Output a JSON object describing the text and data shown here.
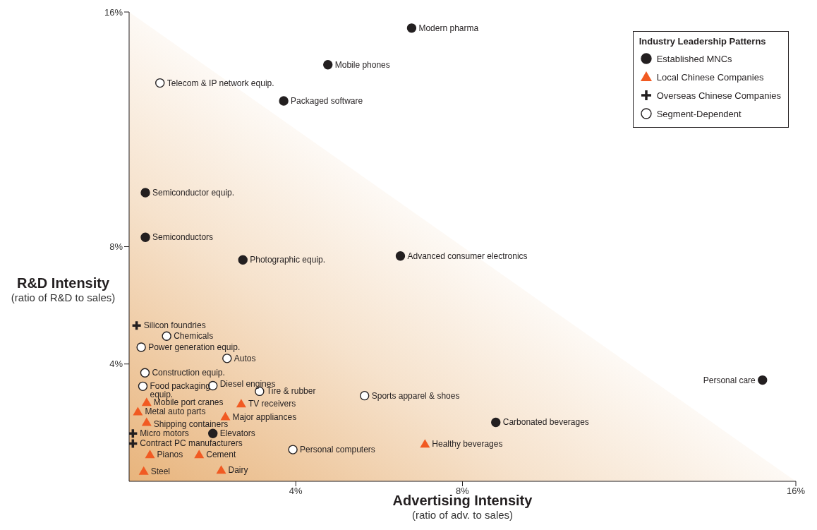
{
  "chart_data": {
    "type": "scatter",
    "xlabel": "Advertising Intensity\n(ratio of adv. to sales)",
    "ylabel": "R&D Intensity\n(ratio of R&D to sales)",
    "legend_title": "Industry Leadership Patterns",
    "legend": "top right",
    "xlim": [
      0,
      16
    ],
    "xticks": [
      {
        "value": 4,
        "label": "4%"
      },
      {
        "value": 8,
        "label": "8%"
      },
      {
        "value": 16,
        "label": "16%"
      }
    ],
    "ylim": [
      0,
      16
    ],
    "yticks": [
      {
        "value": 4,
        "label": "4%"
      },
      {
        "value": 8,
        "label": "8%"
      },
      {
        "value": 16,
        "label": "16%"
      }
    ],
    "series": [
      {
        "name": "Established MNCs",
        "color": "#231f20",
        "marker": "circle",
        "x": [
          6.78,
          4.77,
          3.71,
          0.39,
          0.39,
          2.73,
          6.51,
          15.2,
          8.8,
          2.01
        ],
        "values": [
          15.45,
          14.2,
          12.97,
          9.84,
          8.32,
          7.55,
          7.68,
          3.45,
          2.01,
          1.63
        ]
      },
      {
        "name": "Local Chinese Companies",
        "color": "#f15a22",
        "marker": "triangle",
        "x": [
          0.42,
          0.21,
          0.42,
          2.69,
          2.31,
          0.5,
          1.68,
          0.35,
          2.21,
          7.1
        ],
        "values": [
          2.69,
          2.37,
          2.01,
          2.64,
          2.2,
          0.91,
          0.91,
          0.34,
          0.38,
          1.27
        ]
      },
      {
        "name": "Overseas Chinese Companies",
        "color": "#231f20",
        "marker": "cross",
        "x": [
          0.18,
          0.09,
          0.09
        ],
        "values": [
          5.31,
          1.63,
          1.29
        ]
      },
      {
        "name": "Segment-Dependent",
        "color": "#ffffff",
        "marker": "circle",
        "x": [
          0.74,
          0.9,
          0.29,
          2.35,
          0.38,
          2.01,
          0.33,
          3.13,
          5.65,
          3.93
        ],
        "values": [
          13.58,
          4.95,
          4.57,
          4.19,
          3.7,
          3.26,
          3.24,
          3.07,
          2.92,
          1.08
        ]
      }
    ],
    "annotations": [
      {
        "text": "Modern pharma",
        "x": 6.78,
        "y": 15.45
      },
      {
        "text": "Mobile phones",
        "x": 4.77,
        "y": 14.2
      },
      {
        "text": "Packaged software",
        "x": 3.71,
        "y": 12.97
      },
      {
        "text": "Semiconductor equip.",
        "x": 0.39,
        "y": 9.84
      },
      {
        "text": "Semiconductors",
        "x": 0.39,
        "y": 8.32
      },
      {
        "text": "Photographic equip.",
        "x": 2.73,
        "y": 7.55
      },
      {
        "text": "Advanced consumer electronics",
        "x": 6.51,
        "y": 7.68
      },
      {
        "text": "Personal care",
        "x": 15.2,
        "y": 3.45
      },
      {
        "text": "Carbonated beverages",
        "x": 8.8,
        "y": 2.01
      },
      {
        "text": "Elevators",
        "x": 2.01,
        "y": 1.63
      },
      {
        "text": "Mobile port cranes",
        "x": 0.42,
        "y": 2.69
      },
      {
        "text": "Metal auto parts",
        "x": 0.21,
        "y": 2.37
      },
      {
        "text": "Shipping containers",
        "x": 0.42,
        "y": 2.01
      },
      {
        "text": "TV receivers",
        "x": 2.69,
        "y": 2.64
      },
      {
        "text": "Major appliances",
        "x": 2.31,
        "y": 2.2
      },
      {
        "text": "Pianos",
        "x": 0.5,
        "y": 0.91
      },
      {
        "text": "Cement",
        "x": 1.68,
        "y": 0.91
      },
      {
        "text": "Steel",
        "x": 0.35,
        "y": 0.34
      },
      {
        "text": "Dairy",
        "x": 2.21,
        "y": 0.38
      },
      {
        "text": "Healthy beverages",
        "x": 7.1,
        "y": 1.27
      },
      {
        "text": "Silicon foundries",
        "x": 0.18,
        "y": 5.31
      },
      {
        "text": "Micro motors",
        "x": 0.09,
        "y": 1.63
      },
      {
        "text": "Contract PC manufacturers",
        "x": 0.09,
        "y": 1.29
      },
      {
        "text": "Telecom & IP network equip.",
        "x": 0.74,
        "y": 13.58
      },
      {
        "text": "Chemicals",
        "x": 0.9,
        "y": 4.95
      },
      {
        "text": "Power generation equip.",
        "x": 0.29,
        "y": 4.57
      },
      {
        "text": "Autos",
        "x": 2.35,
        "y": 4.19
      },
      {
        "text": "Construction equip.",
        "x": 0.38,
        "y": 3.7
      },
      {
        "text": "Diesel engines",
        "x": 2.01,
        "y": 3.26
      },
      {
        "text": "Food packaging equip.",
        "x": 0.33,
        "y": 3.24
      },
      {
        "text": "Tire & rubber",
        "x": 3.13,
        "y": 3.07
      },
      {
        "text": "Sports apparel & shoes",
        "x": 5.65,
        "y": 2.92
      },
      {
        "text": "Personal computers",
        "x": 3.93,
        "y": 1.08
      }
    ]
  }
}
